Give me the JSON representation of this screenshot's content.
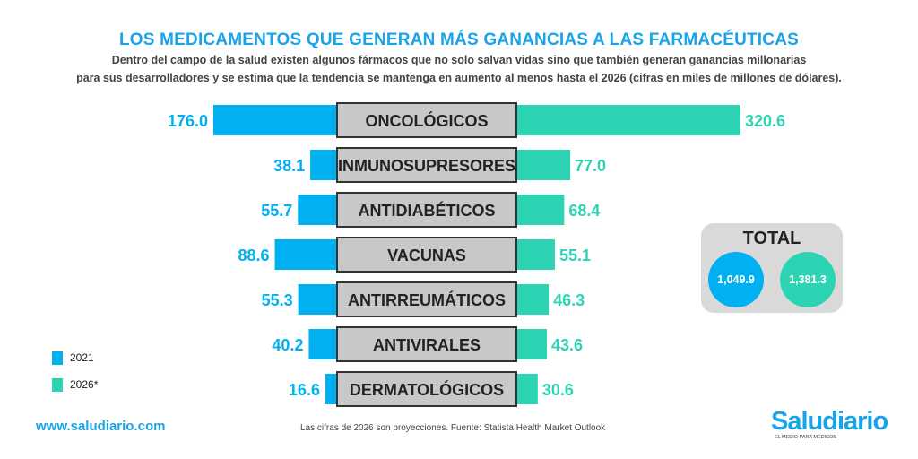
{
  "header": {
    "title": "LOS MEDICAMENTOS QUE GENERAN MÁS GANANCIAS A LAS FARMACÉUTICAS",
    "subtitle_line1": "Dentro del campo de la salud existen algunos fármacos que no solo salvan vidas sino que también generan ganancias millonarias",
    "subtitle_line2": "para sus desarrolladores y se estima que la tendencia se mantenga en aumento al menos hasta el 2026 (cifras en miles de millones de dólares)."
  },
  "chart_data": {
    "type": "bar",
    "orientation": "horizontal-diverging",
    "title": "LOS MEDICAMENTOS QUE GENERAN MÁS GANANCIAS A LAS FARMACÉUTICAS",
    "categories": [
      "ONCOLÓGICOS",
      "INMUNOSUPRESORES",
      "ANTIDIABÉTICOS",
      "VACUNAS",
      "ANTIRREUMÁTICOS",
      "ANTIVIRALES",
      "DERMATOLÓGICOS"
    ],
    "series": [
      {
        "name": "2021",
        "values": [
          176.0,
          38.1,
          55.7,
          88.6,
          55.3,
          40.2,
          16.6
        ],
        "labels": [
          "176.0",
          "38.1",
          "55.7",
          "88.6",
          "55.3",
          "40.2",
          "16.6"
        ],
        "color": "#00b0f0"
      },
      {
        "name": "2026*",
        "values": [
          320.6,
          77.0,
          68.4,
          55.1,
          46.3,
          43.6,
          30.6
        ],
        "labels": [
          "320.6",
          "77.0",
          "68.4",
          "55.1",
          "46.3",
          "43.6",
          "30.6"
        ],
        "color": "#2dd4b4"
      }
    ],
    "totals": {
      "2021": "1,049.9",
      "2026*": "1,381.3"
    },
    "legend": "bottom-left"
  },
  "totals_box": {
    "title": "TOTAL",
    "value_2021": "1,049.9",
    "value_2026": "1,381.3"
  },
  "legend": [
    {
      "label": "2021",
      "color": "#00b0f0"
    },
    {
      "label": "2026*",
      "color": "#2dd4b4"
    }
  ],
  "footer": {
    "website": "www.saludiario.com",
    "note": "Las cifras de 2026 son proyecciones.  Fuente: Statista Health Market Outlook",
    "logo": "Saludiario",
    "logo_tagline": "EL MEDIO PARA MÉDICOS"
  },
  "colors": {
    "accent": "#1aa3e8",
    "label_box": "#c8c8c8",
    "label_box_border": "#333333"
  }
}
